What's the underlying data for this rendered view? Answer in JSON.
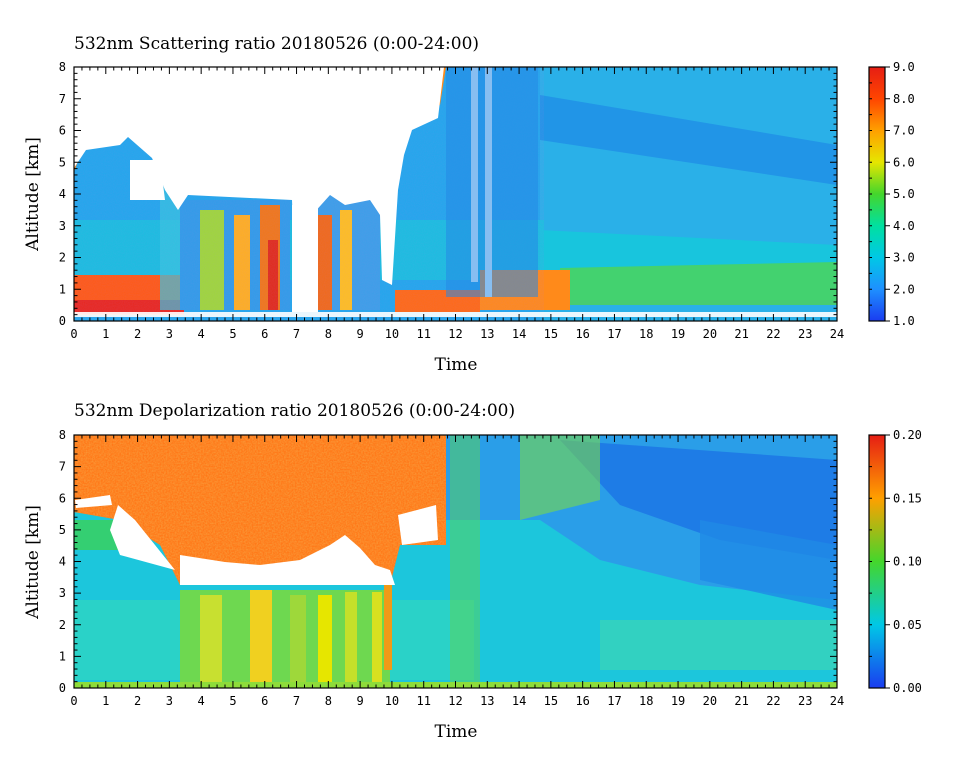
{
  "chart_data": [
    {
      "type": "heatmap",
      "title": "532nm Scattering ratio  20180526 (0:00-24:00)",
      "xlabel": "Time",
      "ylabel": "Altitude [km]",
      "xlim": [
        0,
        24
      ],
      "ylim": [
        0,
        8
      ],
      "x_ticks": [
        "0",
        "1",
        "2",
        "3",
        "4",
        "5",
        "6",
        "7",
        "8",
        "9",
        "10",
        "11",
        "12",
        "13",
        "14",
        "15",
        "16",
        "17",
        "18",
        "19",
        "20",
        "21",
        "22",
        "23",
        "24"
      ],
      "y_ticks": [
        "0",
        "1",
        "2",
        "3",
        "4",
        "5",
        "6",
        "7",
        "8"
      ],
      "colorbar": {
        "range": [
          1.0,
          9.0
        ],
        "tick_labels": [
          "1.0",
          "2.0",
          "3.0",
          "4.0",
          "5.0",
          "6.0",
          "7.0",
          "8.0",
          "9.0"
        ],
        "colors": [
          "#1a3cf0",
          "#1e90ff",
          "#00c8e6",
          "#00e0a0",
          "#44d62c",
          "#e6e600",
          "#ffa000",
          "#ff4500",
          "#e61e14"
        ]
      },
      "features": {
        "saturated_white_regions": "values above scale (clouds), e.g. 0-3.5 h above 5 km, 3-11.5 h above 3.8 km",
        "boundary_layer_high_values": "about 0.3-1.5 km from 0-4 h and 5-10 h",
        "cloud_free_background": "values near 2-3 from 15-24 h"
      }
    },
    {
      "type": "heatmap",
      "title": "532nm Depolarization ratio  20180526 (0:00-24:00)",
      "xlabel": "Time",
      "ylabel": "Altitude [km]",
      "xlim": [
        0,
        24
      ],
      "ylim": [
        0,
        8
      ],
      "x_ticks": [
        "0",
        "1",
        "2",
        "3",
        "4",
        "5",
        "6",
        "7",
        "8",
        "9",
        "10",
        "11",
        "12",
        "13",
        "14",
        "15",
        "16",
        "17",
        "18",
        "19",
        "20",
        "21",
        "22",
        "23",
        "24"
      ],
      "y_ticks": [
        "0",
        "1",
        "2",
        "3",
        "4",
        "5",
        "6",
        "7",
        "8"
      ],
      "colorbar": {
        "range": [
          0.0,
          0.2
        ],
        "tick_labels": [
          "0.00",
          "0.05",
          "0.10",
          "0.15",
          "0.20"
        ],
        "colors": [
          "#1a3cf0",
          "#00c8e6",
          "#44d62c",
          "#ffa000",
          "#e61e14"
        ]
      },
      "features": {
        "noisy_high_values": "0-11.5 h above about 4 km",
        "dust_layer_moderate": "0.06-0.12 between 0-3.5 km from 3.5-10 h",
        "background_low": "values 0.02-0.05 from 14-24 h"
      }
    }
  ]
}
